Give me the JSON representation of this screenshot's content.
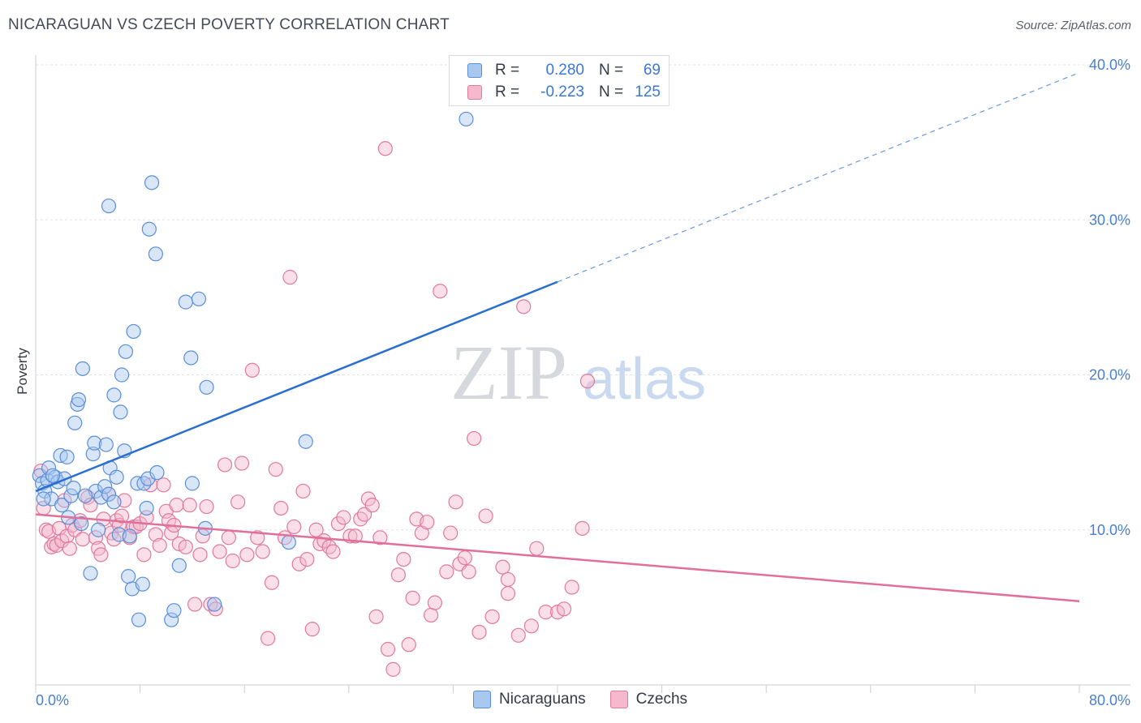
{
  "title": "NICARAGUAN VS CZECH POVERTY CORRELATION CHART",
  "source": "Source: ZipAtlas.com",
  "watermark": {
    "zip": "ZIP",
    "atlas": "atlas"
  },
  "legend_top": [
    {
      "r_label": "R =",
      "r_value": "0.280",
      "n_label": "N =",
      "n_value": "69"
    },
    {
      "r_label": "R =",
      "r_value": "-0.223",
      "n_label": "N =",
      "n_value": "125"
    }
  ],
  "legend_bottom": [
    "Nicaraguans",
    "Czechs"
  ],
  "colors": {
    "blue_fill": "#a8c8f0",
    "blue_stroke": "#5a8fd8",
    "blue_line": "#2a6fd0",
    "pink_fill": "#f5b8cc",
    "pink_stroke": "#e0799e",
    "pink_line": "#e0709a",
    "tick_text": "#4a7fd0",
    "grid": "#dfe3e8"
  },
  "chart_data": {
    "type": "scatter",
    "title": "NICARAGUAN VS CZECH POVERTY CORRELATION CHART",
    "xlabel": "",
    "ylabel": "Poverty",
    "xlim": [
      0,
      80
    ],
    "ylim": [
      0,
      40
    ],
    "x_tick_labels": [
      "0.0%",
      "80.0%"
    ],
    "y_tick_labels": [
      "10.0%",
      "20.0%",
      "30.0%",
      "40.0%"
    ],
    "y_tick_values": [
      10,
      20,
      30,
      40
    ],
    "series": [
      {
        "name": "Nicaraguans",
        "r": 0.28,
        "n": 69,
        "trend": {
          "x0": 0,
          "y0": 12.5,
          "x1": 40,
          "y1": 26.0,
          "dashed_to_x": 80,
          "dashed_to_y": 39.5
        },
        "points": [
          [
            0.3,
            13.5
          ],
          [
            0.5,
            13.0
          ],
          [
            0.7,
            12.5
          ],
          [
            0.9,
            13.2
          ],
          [
            1.0,
            14.0
          ],
          [
            1.2,
            12.0
          ],
          [
            1.5,
            13.4
          ],
          [
            1.7,
            13.1
          ],
          [
            1.9,
            14.8
          ],
          [
            2.0,
            11.6
          ],
          [
            2.2,
            13.3
          ],
          [
            2.4,
            14.7
          ],
          [
            2.5,
            10.8
          ],
          [
            2.7,
            12.2
          ],
          [
            2.9,
            12.7
          ],
          [
            3.0,
            16.9
          ],
          [
            3.2,
            18.1
          ],
          [
            3.3,
            18.4
          ],
          [
            3.6,
            20.4
          ],
          [
            3.5,
            10.4
          ],
          [
            4.2,
            7.2
          ],
          [
            4.4,
            14.9
          ],
          [
            4.5,
            15.6
          ],
          [
            4.6,
            12.5
          ],
          [
            4.8,
            10.0
          ],
          [
            5.0,
            12.1
          ],
          [
            5.3,
            12.8
          ],
          [
            5.4,
            15.5
          ],
          [
            5.6,
            12.3
          ],
          [
            5.7,
            14.0
          ],
          [
            5.6,
            30.9
          ],
          [
            6.0,
            18.7
          ],
          [
            6.2,
            13.4
          ],
          [
            6.4,
            9.7
          ],
          [
            6.5,
            17.6
          ],
          [
            6.6,
            20.0
          ],
          [
            6.8,
            15.1
          ],
          [
            6.9,
            21.5
          ],
          [
            7.2,
            9.6
          ],
          [
            7.1,
            7.0
          ],
          [
            7.4,
            6.2
          ],
          [
            7.5,
            22.8
          ],
          [
            7.8,
            13.0
          ],
          [
            7.9,
            4.2
          ],
          [
            8.2,
            6.5
          ],
          [
            8.3,
            13.0
          ],
          [
            8.5,
            11.4
          ],
          [
            8.6,
            13.3
          ],
          [
            8.7,
            29.4
          ],
          [
            8.9,
            32.4
          ],
          [
            9.3,
            13.7
          ],
          [
            9.2,
            27.8
          ],
          [
            10.4,
            4.2
          ],
          [
            10.6,
            4.8
          ],
          [
            11.0,
            7.7
          ],
          [
            11.5,
            24.7
          ],
          [
            11.9,
            21.1
          ],
          [
            12.0,
            13.0
          ],
          [
            12.5,
            24.9
          ],
          [
            13.1,
            19.2
          ],
          [
            13.0,
            10.1
          ],
          [
            13.7,
            5.2
          ],
          [
            19.4,
            9.2
          ],
          [
            20.7,
            15.7
          ],
          [
            33.0,
            36.5
          ],
          [
            0.6,
            12.0
          ],
          [
            1.3,
            13.5
          ],
          [
            3.8,
            12.2
          ],
          [
            6.0,
            11.8
          ]
        ]
      },
      {
        "name": "Czechs",
        "r": -0.223,
        "n": 125,
        "trend": {
          "x0": 0,
          "y0": 11.0,
          "x1": 80,
          "y1": 5.4
        },
        "points": [
          [
            0.4,
            13.8
          ],
          [
            0.6,
            11.4
          ],
          [
            0.8,
            10.0
          ],
          [
            1.0,
            9.9
          ],
          [
            1.2,
            8.9
          ],
          [
            1.4,
            9.1
          ],
          [
            1.6,
            9.0
          ],
          [
            1.8,
            10.1
          ],
          [
            2.0,
            9.3
          ],
          [
            2.2,
            11.9
          ],
          [
            2.4,
            9.6
          ],
          [
            2.6,
            8.8
          ],
          [
            2.8,
            10.3
          ],
          [
            3.0,
            10.0
          ],
          [
            3.4,
            10.6
          ],
          [
            3.6,
            9.4
          ],
          [
            4.0,
            12.1
          ],
          [
            4.2,
            11.6
          ],
          [
            4.6,
            9.5
          ],
          [
            4.8,
            8.8
          ],
          [
            5.0,
            8.4
          ],
          [
            5.2,
            10.7
          ],
          [
            5.6,
            12.3
          ],
          [
            5.8,
            9.8
          ],
          [
            6.0,
            9.4
          ],
          [
            6.2,
            10.6
          ],
          [
            6.4,
            10.3
          ],
          [
            6.6,
            10.9
          ],
          [
            6.8,
            11.9
          ],
          [
            7.2,
            9.5
          ],
          [
            7.5,
            10.2
          ],
          [
            7.7,
            10.2
          ],
          [
            8.0,
            10.4
          ],
          [
            8.3,
            8.4
          ],
          [
            8.5,
            10.8
          ],
          [
            8.8,
            12.9
          ],
          [
            9.2,
            9.7
          ],
          [
            9.5,
            9.0
          ],
          [
            9.8,
            12.9
          ],
          [
            10.0,
            11.2
          ],
          [
            10.2,
            10.6
          ],
          [
            10.4,
            9.8
          ],
          [
            10.6,
            10.3
          ],
          [
            10.8,
            11.6
          ],
          [
            11.0,
            9.1
          ],
          [
            11.5,
            8.9
          ],
          [
            11.8,
            11.6
          ],
          [
            12.2,
            5.2
          ],
          [
            12.6,
            8.4
          ],
          [
            12.8,
            9.6
          ],
          [
            13.1,
            11.5
          ],
          [
            13.4,
            5.2
          ],
          [
            13.8,
            4.9
          ],
          [
            14.1,
            8.6
          ],
          [
            14.5,
            14.2
          ],
          [
            14.8,
            9.5
          ],
          [
            15.1,
            8.0
          ],
          [
            15.5,
            11.8
          ],
          [
            15.8,
            14.3
          ],
          [
            16.2,
            8.4
          ],
          [
            16.6,
            20.3
          ],
          [
            17.0,
            9.5
          ],
          [
            17.4,
            8.6
          ],
          [
            17.8,
            3.0
          ],
          [
            18.1,
            6.6
          ],
          [
            18.4,
            13.9
          ],
          [
            18.8,
            11.4
          ],
          [
            19.1,
            9.5
          ],
          [
            19.5,
            26.3
          ],
          [
            19.8,
            10.2
          ],
          [
            20.2,
            7.8
          ],
          [
            20.5,
            12.5
          ],
          [
            20.8,
            8.1
          ],
          [
            21.2,
            3.6
          ],
          [
            21.5,
            10.0
          ],
          [
            21.8,
            9.1
          ],
          [
            22.1,
            9.3
          ],
          [
            22.5,
            8.9
          ],
          [
            22.8,
            8.6
          ],
          [
            23.2,
            10.4
          ],
          [
            23.6,
            10.8
          ],
          [
            24.1,
            9.6
          ],
          [
            24.5,
            9.6
          ],
          [
            24.9,
            10.7
          ],
          [
            25.2,
            11.0
          ],
          [
            25.5,
            12.0
          ],
          [
            25.8,
            11.6
          ],
          [
            26.1,
            4.4
          ],
          [
            26.4,
            9.5
          ],
          [
            26.8,
            34.6
          ],
          [
            27.0,
            2.3
          ],
          [
            27.4,
            1.0
          ],
          [
            27.8,
            7.1
          ],
          [
            28.2,
            8.1
          ],
          [
            28.6,
            2.6
          ],
          [
            28.9,
            5.6
          ],
          [
            29.2,
            10.7
          ],
          [
            29.6,
            9.8
          ],
          [
            30.0,
            10.5
          ],
          [
            30.3,
            4.5
          ],
          [
            30.6,
            5.3
          ],
          [
            31.0,
            25.4
          ],
          [
            31.5,
            7.3
          ],
          [
            31.8,
            9.8
          ],
          [
            32.2,
            11.8
          ],
          [
            32.5,
            7.8
          ],
          [
            32.9,
            8.2
          ],
          [
            33.2,
            7.3
          ],
          [
            33.6,
            15.9
          ],
          [
            34.0,
            3.4
          ],
          [
            34.5,
            10.9
          ],
          [
            35.0,
            4.4
          ],
          [
            35.8,
            7.6
          ],
          [
            36.2,
            5.9
          ],
          [
            36.2,
            6.8
          ],
          [
            37.0,
            3.2
          ],
          [
            37.4,
            24.4
          ],
          [
            38.0,
            3.8
          ],
          [
            38.4,
            8.8
          ],
          [
            39.1,
            4.7
          ],
          [
            40.0,
            4.7
          ],
          [
            40.5,
            4.9
          ],
          [
            41.1,
            6.3
          ],
          [
            41.9,
            10.1
          ],
          [
            42.3,
            19.6
          ]
        ]
      }
    ]
  }
}
